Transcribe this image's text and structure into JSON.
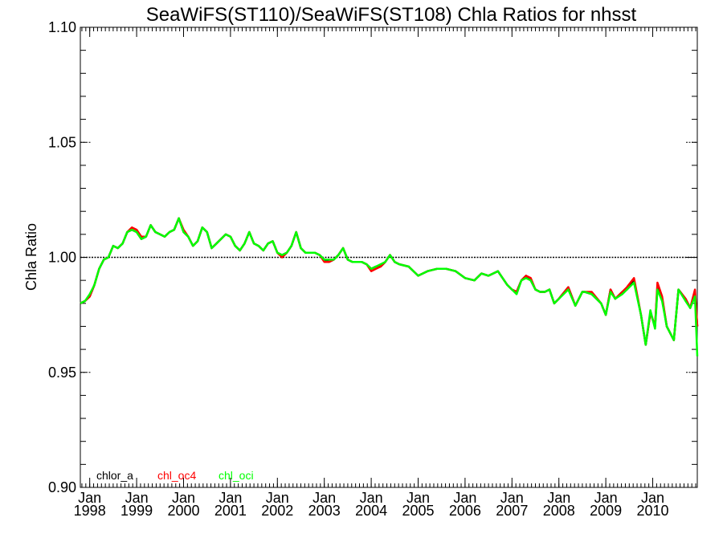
{
  "chart_data": {
    "type": "line",
    "title": "SeaWiFS(ST110)/SeaWiFS(ST108)  Chla Ratios for nhsst",
    "xlabel": "",
    "ylabel": "Chla Ratio",
    "ylim": [
      0.9,
      1.1
    ],
    "xlim": [
      1997.8,
      2010.95
    ],
    "yticks": [
      "0.90",
      "0.95",
      "1.00",
      "1.05",
      "1.10"
    ],
    "xticks": [
      {
        "month": "Jan",
        "year": "1998",
        "x": 1998.0
      },
      {
        "month": "Jan",
        "year": "1999",
        "x": 1999.0
      },
      {
        "month": "Jan",
        "year": "2000",
        "x": 2000.0
      },
      {
        "month": "Jan",
        "year": "2001",
        "x": 2001.0
      },
      {
        "month": "Jan",
        "year": "2002",
        "x": 2002.0
      },
      {
        "month": "Jan",
        "year": "2003",
        "x": 2003.0
      },
      {
        "month": "Jan",
        "year": "2004",
        "x": 2004.0
      },
      {
        "month": "Jan",
        "year": "2005",
        "x": 2005.0
      },
      {
        "month": "Jan",
        "year": "2006",
        "x": 2006.0
      },
      {
        "month": "Jan",
        "year": "2007",
        "x": 2007.0
      },
      {
        "month": "Jan",
        "year": "2008",
        "x": 2008.0
      },
      {
        "month": "Jan",
        "year": "2009",
        "x": 2009.0
      },
      {
        "month": "Jan",
        "year": "2010",
        "x": 2010.0
      }
    ],
    "reference_line": 1.0,
    "legend_position": "bottom-left",
    "series": [
      {
        "name": "chlor_a",
        "color": "#000000",
        "x": [
          1997.8,
          1997.9,
          1998.0,
          1998.1,
          1998.2,
          1998.3,
          1998.4,
          1998.5,
          1998.6,
          1998.7,
          1998.8,
          1998.9,
          1999.0,
          1999.1,
          1999.2,
          1999.3,
          1999.4,
          1999.5,
          1999.6,
          1999.7,
          1999.8,
          1999.9,
          2000.0,
          2000.1,
          2000.2,
          2000.3,
          2000.4,
          2000.5,
          2000.6,
          2000.7,
          2000.8,
          2000.9,
          2001.0,
          2001.1,
          2001.2,
          2001.3,
          2001.4,
          2001.5,
          2001.6,
          2001.7,
          2001.8,
          2001.9,
          2002.0,
          2002.1,
          2002.2,
          2002.3,
          2002.4,
          2002.5,
          2002.6,
          2002.7,
          2002.8,
          2002.9,
          2003.0,
          2003.1,
          2003.2,
          2003.3,
          2003.4,
          2003.5,
          2003.6,
          2003.7,
          2003.8,
          2003.9,
          2004.0,
          2004.1,
          2004.2,
          2004.3,
          2004.4,
          2004.5,
          2004.6,
          2004.8,
          2005.0,
          2005.2,
          2005.4,
          2005.6,
          2005.8,
          2006.0,
          2006.2,
          2006.35,
          2006.5,
          2006.7,
          2006.9,
          2007.0,
          2007.1,
          2007.2,
          2007.3,
          2007.4,
          2007.5,
          2007.6,
          2007.7,
          2007.8,
          2007.9,
          2008.0,
          2008.2,
          2008.35,
          2008.5,
          2008.55,
          2008.7,
          2008.9,
          2009.0,
          2009.1,
          2009.2,
          2009.35,
          2009.45,
          2009.6,
          2009.75,
          2009.85,
          2009.95,
          2010.05,
          2010.1,
          2010.2,
          2010.3,
          2010.45,
          2010.55,
          2010.7,
          2010.8,
          2010.9,
          2010.95
        ],
        "values": [
          0.98,
          0.981,
          0.983,
          0.988,
          0.995,
          0.999,
          1.0,
          1.005,
          1.004,
          1.006,
          1.011,
          1.012,
          1.011,
          1.008,
          1.009,
          1.014,
          1.011,
          1.01,
          1.009,
          1.011,
          1.012,
          1.017,
          1.011,
          1.009,
          1.005,
          1.007,
          1.013,
          1.011,
          1.004,
          1.006,
          1.008,
          1.01,
          1.009,
          1.005,
          1.003,
          1.006,
          1.011,
          1.006,
          1.005,
          1.003,
          1.006,
          1.007,
          1.002,
          1.001,
          1.002,
          1.005,
          1.011,
          1.004,
          1.002,
          1.002,
          1.002,
          1.001,
          0.999,
          0.998,
          0.999,
          1.001,
          1.004,
          0.999,
          0.998,
          0.998,
          0.998,
          0.997,
          0.995,
          0.996,
          0.996,
          0.998,
          1.001,
          0.998,
          0.997,
          0.996,
          0.992,
          0.994,
          0.995,
          0.995,
          0.994,
          0.991,
          0.99,
          0.993,
          0.992,
          0.994,
          0.988,
          0.986,
          0.985,
          0.99,
          0.992,
          0.99,
          0.986,
          0.985,
          0.985,
          0.986,
          0.98,
          0.982,
          0.987,
          0.979,
          0.985,
          0.985,
          0.984,
          0.98,
          0.975,
          0.986,
          0.982,
          0.985,
          0.986,
          0.99,
          0.975,
          0.962,
          0.976,
          0.97,
          0.987,
          0.982,
          0.97,
          0.964,
          0.986,
          0.982,
          0.978,
          0.984,
          0.97
        ]
      },
      {
        "name": "chl_oc4",
        "color": "#ff0000",
        "x": [
          1997.8,
          1997.9,
          1998.0,
          1998.1,
          1998.2,
          1998.3,
          1998.4,
          1998.5,
          1998.6,
          1998.7,
          1998.8,
          1998.9,
          1999.0,
          1999.1,
          1999.2,
          1999.3,
          1999.4,
          1999.5,
          1999.6,
          1999.7,
          1999.8,
          1999.9,
          2000.0,
          2000.1,
          2000.2,
          2000.3,
          2000.4,
          2000.5,
          2000.6,
          2000.7,
          2000.8,
          2000.9,
          2001.0,
          2001.1,
          2001.2,
          2001.3,
          2001.4,
          2001.5,
          2001.6,
          2001.7,
          2001.8,
          2001.9,
          2002.0,
          2002.1,
          2002.2,
          2002.3,
          2002.4,
          2002.5,
          2002.6,
          2002.7,
          2002.8,
          2002.9,
          2003.0,
          2003.1,
          2003.2,
          2003.3,
          2003.4,
          2003.5,
          2003.6,
          2003.7,
          2003.8,
          2003.9,
          2004.0,
          2004.1,
          2004.2,
          2004.3,
          2004.4,
          2004.5,
          2004.6,
          2004.8,
          2005.0,
          2005.2,
          2005.4,
          2005.6,
          2005.8,
          2006.0,
          2006.2,
          2006.35,
          2006.5,
          2006.7,
          2006.9,
          2007.0,
          2007.1,
          2007.2,
          2007.3,
          2007.4,
          2007.5,
          2007.6,
          2007.7,
          2007.8,
          2007.9,
          2008.0,
          2008.2,
          2008.35,
          2008.5,
          2008.55,
          2008.7,
          2008.9,
          2009.0,
          2009.1,
          2009.2,
          2009.35,
          2009.45,
          2009.6,
          2009.75,
          2009.85,
          2009.95,
          2010.05,
          2010.1,
          2010.2,
          2010.3,
          2010.45,
          2010.55,
          2010.7,
          2010.8,
          2010.9,
          2010.95
        ],
        "values": [
          0.98,
          0.981,
          0.983,
          0.988,
          0.995,
          0.999,
          1.0,
          1.005,
          1.004,
          1.006,
          1.011,
          1.013,
          1.012,
          1.009,
          1.009,
          1.014,
          1.011,
          1.01,
          1.009,
          1.011,
          1.012,
          1.017,
          1.012,
          1.009,
          1.005,
          1.007,
          1.013,
          1.011,
          1.004,
          1.006,
          1.008,
          1.01,
          1.009,
          1.005,
          1.003,
          1.006,
          1.011,
          1.006,
          1.005,
          1.003,
          1.006,
          1.007,
          1.002,
          1.0,
          1.002,
          1.005,
          1.011,
          1.004,
          1.002,
          1.002,
          1.002,
          1.001,
          0.998,
          0.998,
          0.999,
          1.001,
          1.004,
          0.999,
          0.998,
          0.998,
          0.998,
          0.997,
          0.994,
          0.995,
          0.996,
          0.998,
          1.001,
          0.998,
          0.997,
          0.996,
          0.992,
          0.994,
          0.995,
          0.995,
          0.994,
          0.991,
          0.99,
          0.993,
          0.992,
          0.994,
          0.988,
          0.986,
          0.985,
          0.99,
          0.992,
          0.991,
          0.986,
          0.985,
          0.985,
          0.986,
          0.98,
          0.982,
          0.987,
          0.979,
          0.985,
          0.985,
          0.985,
          0.98,
          0.975,
          0.986,
          0.982,
          0.985,
          0.987,
          0.991,
          0.975,
          0.962,
          0.976,
          0.97,
          0.989,
          0.983,
          0.97,
          0.964,
          0.986,
          0.982,
          0.978,
          0.986,
          0.97
        ]
      },
      {
        "name": "chl_oci",
        "color": "#00ff00",
        "x": [
          1997.8,
          1997.9,
          1998.0,
          1998.1,
          1998.2,
          1998.3,
          1998.4,
          1998.5,
          1998.6,
          1998.7,
          1998.8,
          1998.9,
          1999.0,
          1999.1,
          1999.2,
          1999.3,
          1999.4,
          1999.5,
          1999.6,
          1999.7,
          1999.8,
          1999.9,
          2000.0,
          2000.1,
          2000.2,
          2000.3,
          2000.4,
          2000.5,
          2000.6,
          2000.7,
          2000.8,
          2000.9,
          2001.0,
          2001.1,
          2001.2,
          2001.3,
          2001.4,
          2001.5,
          2001.6,
          2001.7,
          2001.8,
          2001.9,
          2002.0,
          2002.1,
          2002.2,
          2002.3,
          2002.4,
          2002.5,
          2002.6,
          2002.7,
          2002.8,
          2002.9,
          2003.0,
          2003.1,
          2003.2,
          2003.3,
          2003.4,
          2003.5,
          2003.6,
          2003.7,
          2003.8,
          2003.9,
          2004.0,
          2004.1,
          2004.2,
          2004.3,
          2004.4,
          2004.5,
          2004.6,
          2004.8,
          2005.0,
          2005.2,
          2005.4,
          2005.6,
          2005.8,
          2006.0,
          2006.2,
          2006.35,
          2006.5,
          2006.7,
          2006.9,
          2007.0,
          2007.1,
          2007.2,
          2007.3,
          2007.4,
          2007.5,
          2007.6,
          2007.7,
          2007.8,
          2007.9,
          2008.0,
          2008.2,
          2008.35,
          2008.5,
          2008.55,
          2008.7,
          2008.9,
          2009.0,
          2009.1,
          2009.2,
          2009.35,
          2009.45,
          2009.6,
          2009.75,
          2009.85,
          2009.95,
          2010.05,
          2010.1,
          2010.2,
          2010.3,
          2010.45,
          2010.55,
          2010.7,
          2010.8,
          2010.9,
          2010.95
        ],
        "values": [
          0.98,
          0.981,
          0.984,
          0.988,
          0.995,
          0.999,
          1.0,
          1.005,
          1.004,
          1.006,
          1.011,
          1.012,
          1.011,
          1.008,
          1.009,
          1.014,
          1.011,
          1.01,
          1.009,
          1.011,
          1.012,
          1.017,
          1.011,
          1.009,
          1.005,
          1.007,
          1.013,
          1.011,
          1.004,
          1.006,
          1.008,
          1.01,
          1.009,
          1.005,
          1.003,
          1.006,
          1.011,
          1.006,
          1.005,
          1.003,
          1.006,
          1.007,
          1.002,
          1.001,
          1.002,
          1.005,
          1.011,
          1.004,
          1.002,
          1.002,
          1.002,
          1.001,
          0.999,
          0.999,
          0.999,
          1.001,
          1.004,
          0.999,
          0.998,
          0.998,
          0.998,
          0.997,
          0.995,
          0.996,
          0.997,
          0.998,
          1.001,
          0.998,
          0.997,
          0.996,
          0.992,
          0.994,
          0.995,
          0.995,
          0.994,
          0.991,
          0.99,
          0.993,
          0.992,
          0.994,
          0.988,
          0.986,
          0.984,
          0.99,
          0.991,
          0.99,
          0.986,
          0.985,
          0.985,
          0.986,
          0.98,
          0.982,
          0.986,
          0.979,
          0.985,
          0.985,
          0.984,
          0.98,
          0.975,
          0.985,
          0.982,
          0.984,
          0.986,
          0.989,
          0.975,
          0.962,
          0.977,
          0.969,
          0.986,
          0.981,
          0.97,
          0.964,
          0.986,
          0.981,
          0.978,
          0.983,
          0.957
        ]
      }
    ]
  }
}
